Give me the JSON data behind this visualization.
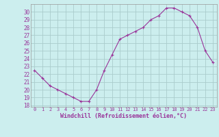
{
  "hours": [
    0,
    1,
    2,
    3,
    4,
    5,
    6,
    7,
    8,
    9,
    10,
    11,
    12,
    13,
    14,
    15,
    16,
    17,
    18,
    19,
    20,
    21,
    22,
    23
  ],
  "values": [
    22.5,
    21.5,
    20.5,
    20.0,
    19.5,
    19.0,
    18.5,
    18.5,
    20.0,
    22.5,
    24.5,
    26.5,
    27.0,
    27.5,
    28.0,
    29.0,
    29.5,
    30.5,
    30.5,
    30.0,
    29.5,
    28.0,
    25.0,
    23.5
  ],
  "line_color": "#993399",
  "marker": "+",
  "bg_color": "#cceeee",
  "grid_color": "#aacccc",
  "xlabel": "Windchill (Refroidissement éolien,°C)",
  "xlabel_color": "#993399",
  "tick_color": "#993399",
  "ylim_min": 17.8,
  "ylim_max": 31.0,
  "yticks": [
    18,
    19,
    20,
    21,
    22,
    23,
    24,
    25,
    26,
    27,
    28,
    29,
    30
  ],
  "xticks": [
    0,
    1,
    2,
    3,
    4,
    5,
    6,
    7,
    8,
    9,
    10,
    11,
    12,
    13,
    14,
    15,
    16,
    17,
    18,
    19,
    20,
    21,
    22,
    23
  ],
  "axis_border_color": "#999999"
}
